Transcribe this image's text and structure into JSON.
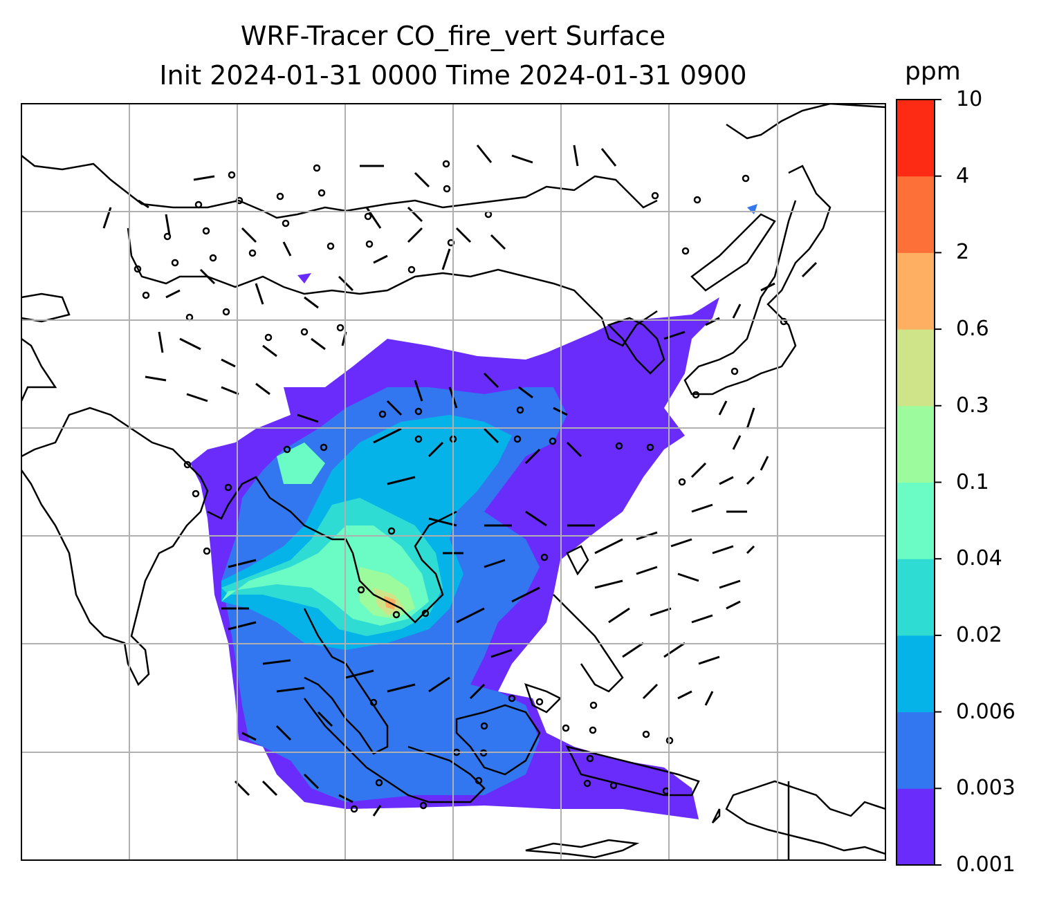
{
  "title": {
    "line1": "WRF-Tracer CO_fire_vert Surface",
    "line2": "Init 2024-01-31 0000 Time 2024-01-31 0900"
  },
  "colorbar": {
    "units": "ppm",
    "levels": [
      "0.001",
      "0.003",
      "0.006",
      "0.02",
      "0.04",
      "0.1",
      "0.3",
      "0.6",
      "2",
      "4",
      "10"
    ],
    "colors": [
      "#6a2cfb",
      "#3377f0",
      "#05b3e8",
      "#2edcd4",
      "#6bfbc4",
      "#9cfb9c",
      "#cfe388",
      "#feaf62",
      "#fd7139",
      "#fd2a14"
    ]
  },
  "map": {
    "features": [
      "coastlines",
      "country-borders",
      "gridlines",
      "wind-barbs",
      "co-concentration-shading"
    ]
  }
}
